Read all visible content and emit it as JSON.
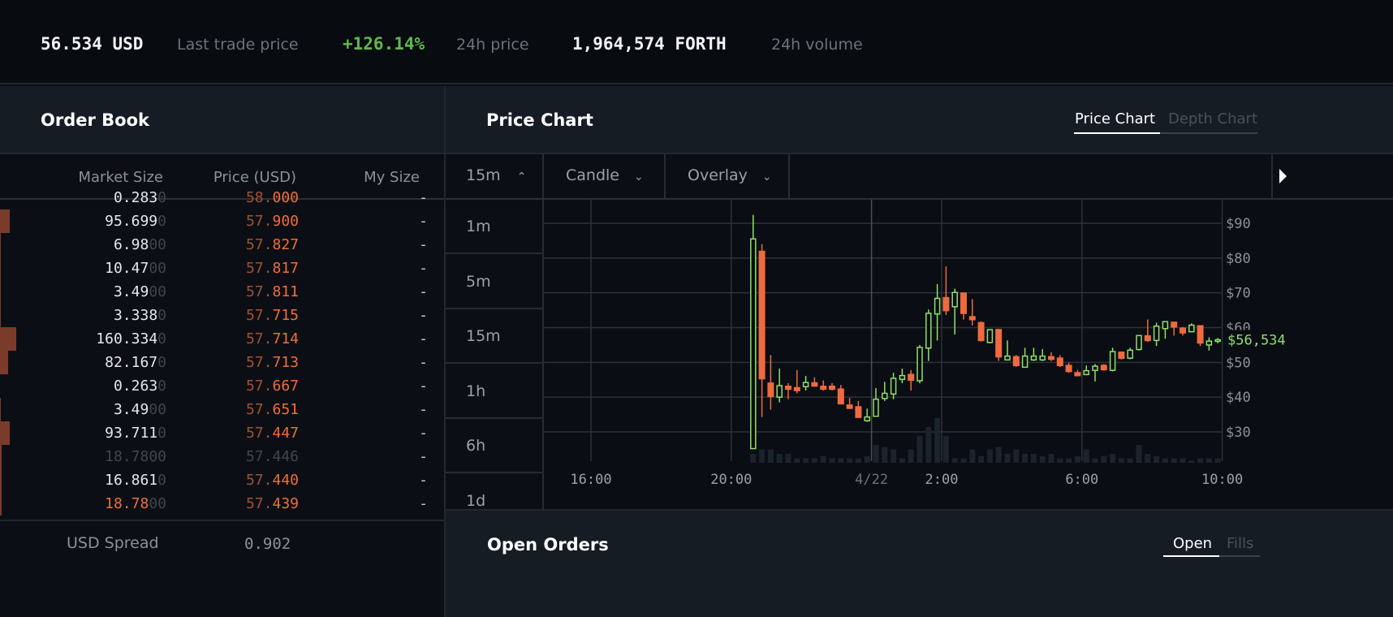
{
  "ticker": {
    "last_price": "56.534 USD",
    "last_price_label": "Last trade price",
    "change": "+126.14%",
    "change_label": "24h price",
    "volume": "1,964,574 FORTH",
    "volume_label": "24h volume",
    "change_color": "#5fb94a"
  },
  "order_book": {
    "title": "Order Book",
    "columns": [
      "Market Size",
      "Price (USD)",
      "My Size"
    ],
    "rows": [
      {
        "size": "0.283",
        "pad": "0",
        "pint": "58.",
        "pdec": "000",
        "my": "-",
        "style": "partial"
      },
      {
        "size": "95.699",
        "pad": "0",
        "pint": "57.",
        "pdec": "900",
        "my": "-",
        "style": ""
      },
      {
        "size": "6.98",
        "pad": "00",
        "pint": "57.",
        "pdec": "827",
        "my": "-",
        "style": ""
      },
      {
        "size": "10.47",
        "pad": "00",
        "pint": "57.",
        "pdec": "817",
        "my": "-",
        "style": ""
      },
      {
        "size": "3.49",
        "pad": "00",
        "pint": "57.",
        "pdec": "811",
        "my": "-",
        "style": ""
      },
      {
        "size": "3.338",
        "pad": "0",
        "pint": "57.",
        "pdec": "715",
        "my": "-",
        "style": ""
      },
      {
        "size": "160.334",
        "pad": "0",
        "pint": "57.",
        "pdec": "714",
        "my": "-",
        "style": ""
      },
      {
        "size": "82.167",
        "pad": "0",
        "pint": "57.",
        "pdec": "713",
        "my": "-",
        "style": ""
      },
      {
        "size": "0.263",
        "pad": "0",
        "pint": "57.",
        "pdec": "667",
        "my": "-",
        "style": ""
      },
      {
        "size": "3.49",
        "pad": "00",
        "pint": "57.",
        "pdec": "651",
        "my": "-",
        "style": ""
      },
      {
        "size": "93.711",
        "pad": "0",
        "pint": "57.",
        "pdec": "447",
        "my": "-",
        "style": ""
      },
      {
        "size": "18.7800",
        "pad": "",
        "pint": "57.",
        "pdec": "446",
        "my": "-",
        "style": "dim"
      },
      {
        "size": "16.861",
        "pad": "0",
        "pint": "57.",
        "pdec": "440",
        "my": "-",
        "style": ""
      },
      {
        "size": "18.78",
        "pad": "00",
        "pint": "57.",
        "pdec": "439",
        "my": "-",
        "style": "ask"
      }
    ],
    "spread_label": "USD Spread",
    "spread_value": "0.902"
  },
  "price_chart": {
    "title": "Price Chart",
    "tabs": [
      {
        "label": "Price Chart",
        "active": true
      },
      {
        "label": "Depth Chart",
        "active": false
      }
    ],
    "toolbar": {
      "interval": "15m",
      "chart_type": "Candle",
      "overlay": "Overlay"
    },
    "interval_options": [
      "1m",
      "5m",
      "15m",
      "1h",
      "6h",
      "1d"
    ]
  },
  "chart_data": {
    "type": "candlestick",
    "interval": "15m",
    "x_ticks": [
      "16:00",
      "20:00",
      "4/22",
      "2:00",
      "6:00",
      "10:00"
    ],
    "y_ticks": [
      "$90",
      "$80",
      "$70",
      "$60",
      "$50",
      "$40",
      "$30"
    ],
    "ylim": [
      23,
      96
    ],
    "current_price_label": "$56,534",
    "up_color": "#8ee06a",
    "down_color": "#ef6a3e",
    "candles_ohlc": [
      [
        "20:30",
        25.2,
        92.4,
        25.2,
        85.5
      ],
      [
        "20:45",
        82.1,
        84.0,
        34.3,
        45.1
      ],
      [
        "21:00",
        44.2,
        52.1,
        36.4,
        40.0
      ],
      [
        "21:15",
        40.0,
        48.2,
        38.5,
        43.3
      ],
      [
        "21:30",
        43.3,
        44.0,
        39.4,
        42.1
      ],
      [
        "21:45",
        42.9,
        47.8,
        41.1,
        41.7
      ],
      [
        "22:00",
        43.0,
        46.1,
        41.9,
        44.2
      ],
      [
        "22:15",
        44.3,
        45.7,
        43.0,
        43.0
      ],
      [
        "22:30",
        43.3,
        44.8,
        41.9,
        42.1
      ],
      [
        "22:45",
        43.3,
        44.0,
        41.9,
        42.1
      ],
      [
        "23:00",
        42.5,
        43.5,
        37.9,
        37.9
      ],
      [
        "23:15",
        37.9,
        39.8,
        36.6,
        36.6
      ],
      [
        "23:30",
        37.4,
        38.9,
        34.0,
        34.0
      ],
      [
        "23:45",
        33.2,
        36.7,
        32.9,
        34.3
      ],
      [
        "00:00",
        34.5,
        42.6,
        34.5,
        39.4
      ],
      [
        "00:15",
        39.6,
        44.4,
        38.9,
        41.1
      ],
      [
        "00:30",
        40.9,
        47.0,
        39.4,
        45.4
      ],
      [
        "00:45",
        45.1,
        48.2,
        44.0,
        46.2
      ],
      [
        "01:00",
        46.7,
        47.8,
        41.9,
        44.7
      ],
      [
        "01:15",
        44.7,
        55.0,
        44.0,
        54.3
      ],
      [
        "01:30",
        54.1,
        65.2,
        50.4,
        64.1
      ],
      [
        "01:45",
        63.9,
        72.5,
        56.3,
        68.4
      ],
      [
        "02:00",
        68.8,
        77.6,
        63.6,
        64.7
      ],
      [
        "02:15",
        66.0,
        71.2,
        58.0,
        70.1
      ],
      [
        "02:30",
        70.1,
        70.1,
        62.3,
        63.9
      ],
      [
        "02:45",
        63.3,
        68.2,
        60.6,
        62.1
      ],
      [
        "03:00",
        61.6,
        61.8,
        56.0,
        56.1
      ],
      [
        "03:15",
        55.7,
        59.4,
        55.5,
        59.4
      ],
      [
        "03:30",
        59.6,
        59.6,
        50.4,
        51.4
      ],
      [
        "03:45",
        50.7,
        56.3,
        50.7,
        51.8
      ],
      [
        "04:00",
        51.8,
        52.1,
        48.7,
        48.9
      ],
      [
        "04:15",
        48.6,
        54.2,
        48.5,
        51.8
      ],
      [
        "04:30",
        50.7,
        54.2,
        50.4,
        51.8
      ],
      [
        "04:45",
        50.7,
        53.8,
        50.4,
        51.8
      ],
      [
        "05:00",
        51.8,
        52.9,
        50.4,
        50.7
      ],
      [
        "05:15",
        51.4,
        52.1,
        48.7,
        48.9
      ],
      [
        "05:30",
        49.3,
        49.9,
        47.0,
        47.2
      ],
      [
        "05:45",
        47.2,
        47.8,
        46.0,
        46.0
      ],
      [
        "06:00",
        46.5,
        49.1,
        46.3,
        47.6
      ],
      [
        "06:15",
        47.7,
        49.5,
        44.5,
        48.9
      ],
      [
        "06:30",
        49.3,
        49.5,
        47.6,
        47.7
      ],
      [
        "06:45",
        47.7,
        54.2,
        47.4,
        53.1
      ],
      [
        "07:00",
        53.1,
        53.1,
        50.8,
        51.0
      ],
      [
        "07:15",
        51.2,
        54.2,
        50.9,
        53.5
      ],
      [
        "07:30",
        53.7,
        57.9,
        53.4,
        57.7
      ],
      [
        "07:45",
        57.8,
        62.3,
        55.9,
        56.1
      ],
      [
        "08:00",
        56.3,
        61.4,
        54.7,
        60.4
      ],
      [
        "08:15",
        59.7,
        61.7,
        56.8,
        61.7
      ],
      [
        "08:30",
        61.7,
        61.7,
        57.7,
        60.0
      ],
      [
        "08:45",
        60.0,
        60.2,
        57.7,
        58.3
      ],
      [
        "09:00",
        58.8,
        61.2,
        58.7,
        60.7
      ],
      [
        "09:15",
        60.7,
        60.7,
        54.7,
        55.4
      ],
      [
        "09:30",
        55.0,
        57.2,
        53.4,
        56.1
      ],
      [
        "09:45",
        56.1,
        57.0,
        55.5,
        56.5
      ]
    ],
    "volume_relative": [
      2,
      3,
      3,
      2,
      2,
      1,
      1,
      1,
      1.5,
      1,
      1,
      1,
      1,
      1.5,
      4,
      3.5,
      3,
      1,
      3,
      6,
      8,
      10,
      6,
      1,
      1,
      3,
      1.5,
      3,
      3.5,
      2,
      3,
      2,
      2,
      1.5,
      2,
      1,
      1,
      1.5,
      3,
      1,
      1.5,
      2,
      1,
      1,
      4,
      2,
      1.5,
      1,
      1,
      1,
      0.5,
      1,
      1,
      1
    ]
  },
  "open_orders": {
    "title": "Open Orders",
    "tabs": [
      {
        "label": "Open",
        "active": true
      },
      {
        "label": "Fills",
        "active": false
      }
    ]
  }
}
